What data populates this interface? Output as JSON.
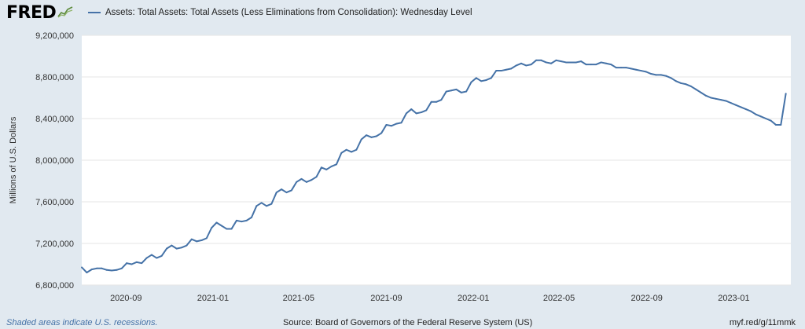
{
  "logo": {
    "text": "FRED",
    "mark_icon": "fred-graph-line-icon"
  },
  "legend": {
    "label": "Assets: Total Assets: Total Assets (Less Eliminations from Consolidation): Wednesday Level",
    "color": "#4572a7"
  },
  "footer": {
    "recessions_note": "Shaded areas indicate U.S. recessions.",
    "source": "Source: Board of Governors of the Federal Reserve System (US)",
    "short_url": "myf.red/g/11mmk"
  },
  "chart_data": {
    "type": "line",
    "title": "",
    "xlabel": "",
    "ylabel": "Millions of U.S. Dollars",
    "ylim": [
      6800000,
      9200000
    ],
    "yticks": [
      {
        "value": 6800000,
        "label": "6,800,000"
      },
      {
        "value": 7200000,
        "label": "7,200,000"
      },
      {
        "value": 7600000,
        "label": "7,600,000"
      },
      {
        "value": 8000000,
        "label": "8,000,000"
      },
      {
        "value": 8400000,
        "label": "8,400,000"
      },
      {
        "value": 8800000,
        "label": "8,800,000"
      },
      {
        "value": 9200000,
        "label": "9,200,000"
      }
    ],
    "xlim": [
      "2020-07-01",
      "2023-03-22"
    ],
    "xticks": [
      {
        "date": "2020-09-01",
        "label": "2020-09"
      },
      {
        "date": "2021-01-01",
        "label": "2021-01"
      },
      {
        "date": "2021-05-01",
        "label": "2021-05"
      },
      {
        "date": "2021-09-01",
        "label": "2021-09"
      },
      {
        "date": "2022-01-01",
        "label": "2022-01"
      },
      {
        "date": "2022-05-01",
        "label": "2022-05"
      },
      {
        "date": "2022-09-01",
        "label": "2022-09"
      },
      {
        "date": "2023-01-01",
        "label": "2023-01"
      }
    ],
    "grid": {
      "horizontal": true,
      "vertical": false
    },
    "series": [
      {
        "color": "#4572a7",
        "points": [
          [
            "2020-07-01",
            6970000
          ],
          [
            "2020-07-08",
            6920000
          ],
          [
            "2020-07-15",
            6950000
          ],
          [
            "2020-07-22",
            6960000
          ],
          [
            "2020-07-29",
            6960000
          ],
          [
            "2020-08-05",
            6945000
          ],
          [
            "2020-08-12",
            6940000
          ],
          [
            "2020-08-19",
            6945000
          ],
          [
            "2020-08-26",
            6960000
          ],
          [
            "2020-09-02",
            7010000
          ],
          [
            "2020-09-09",
            7000000
          ],
          [
            "2020-09-16",
            7020000
          ],
          [
            "2020-09-23",
            7010000
          ],
          [
            "2020-09-30",
            7060000
          ],
          [
            "2020-10-07",
            7090000
          ],
          [
            "2020-10-14",
            7060000
          ],
          [
            "2020-10-21",
            7080000
          ],
          [
            "2020-10-28",
            7150000
          ],
          [
            "2020-11-04",
            7180000
          ],
          [
            "2020-11-11",
            7150000
          ],
          [
            "2020-11-18",
            7160000
          ],
          [
            "2020-11-25",
            7180000
          ],
          [
            "2020-12-02",
            7240000
          ],
          [
            "2020-12-09",
            7220000
          ],
          [
            "2020-12-16",
            7230000
          ],
          [
            "2020-12-23",
            7250000
          ],
          [
            "2020-12-30",
            7350000
          ],
          [
            "2021-01-06",
            7400000
          ],
          [
            "2021-01-13",
            7370000
          ],
          [
            "2021-01-20",
            7340000
          ],
          [
            "2021-01-27",
            7340000
          ],
          [
            "2021-02-03",
            7420000
          ],
          [
            "2021-02-10",
            7410000
          ],
          [
            "2021-02-17",
            7420000
          ],
          [
            "2021-02-24",
            7450000
          ],
          [
            "2021-03-03",
            7560000
          ],
          [
            "2021-03-10",
            7590000
          ],
          [
            "2021-03-17",
            7560000
          ],
          [
            "2021-03-24",
            7580000
          ],
          [
            "2021-03-31",
            7690000
          ],
          [
            "2021-04-07",
            7720000
          ],
          [
            "2021-04-14",
            7690000
          ],
          [
            "2021-04-21",
            7710000
          ],
          [
            "2021-04-28",
            7790000
          ],
          [
            "2021-05-05",
            7820000
          ],
          [
            "2021-05-12",
            7790000
          ],
          [
            "2021-05-19",
            7810000
          ],
          [
            "2021-05-26",
            7840000
          ],
          [
            "2021-06-02",
            7930000
          ],
          [
            "2021-06-09",
            7910000
          ],
          [
            "2021-06-16",
            7940000
          ],
          [
            "2021-06-23",
            7960000
          ],
          [
            "2021-06-30",
            8070000
          ],
          [
            "2021-07-07",
            8100000
          ],
          [
            "2021-07-14",
            8080000
          ],
          [
            "2021-07-21",
            8100000
          ],
          [
            "2021-07-28",
            8200000
          ],
          [
            "2021-08-04",
            8240000
          ],
          [
            "2021-08-11",
            8220000
          ],
          [
            "2021-08-18",
            8230000
          ],
          [
            "2021-08-25",
            8260000
          ],
          [
            "2021-09-01",
            8340000
          ],
          [
            "2021-09-08",
            8330000
          ],
          [
            "2021-09-15",
            8350000
          ],
          [
            "2021-09-22",
            8360000
          ],
          [
            "2021-09-29",
            8450000
          ],
          [
            "2021-10-06",
            8490000
          ],
          [
            "2021-10-13",
            8450000
          ],
          [
            "2021-10-20",
            8460000
          ],
          [
            "2021-10-27",
            8480000
          ],
          [
            "2021-11-03",
            8560000
          ],
          [
            "2021-11-10",
            8560000
          ],
          [
            "2021-11-17",
            8580000
          ],
          [
            "2021-11-24",
            8660000
          ],
          [
            "2021-12-01",
            8670000
          ],
          [
            "2021-12-08",
            8680000
          ],
          [
            "2021-12-15",
            8650000
          ],
          [
            "2021-12-22",
            8660000
          ],
          [
            "2021-12-29",
            8750000
          ],
          [
            "2022-01-05",
            8790000
          ],
          [
            "2022-01-12",
            8760000
          ],
          [
            "2022-01-19",
            8770000
          ],
          [
            "2022-01-26",
            8790000
          ],
          [
            "2022-02-02",
            8860000
          ],
          [
            "2022-02-09",
            8860000
          ],
          [
            "2022-02-16",
            8870000
          ],
          [
            "2022-02-23",
            8880000
          ],
          [
            "2022-03-02",
            8910000
          ],
          [
            "2022-03-09",
            8930000
          ],
          [
            "2022-03-16",
            8910000
          ],
          [
            "2022-03-23",
            8920000
          ],
          [
            "2022-03-30",
            8960000
          ],
          [
            "2022-04-06",
            8960000
          ],
          [
            "2022-04-13",
            8940000
          ],
          [
            "2022-04-20",
            8930000
          ],
          [
            "2022-04-27",
            8960000
          ],
          [
            "2022-05-04",
            8950000
          ],
          [
            "2022-05-11",
            8940000
          ],
          [
            "2022-05-18",
            8940000
          ],
          [
            "2022-05-25",
            8940000
          ],
          [
            "2022-06-01",
            8950000
          ],
          [
            "2022-06-08",
            8920000
          ],
          [
            "2022-06-15",
            8920000
          ],
          [
            "2022-06-22",
            8920000
          ],
          [
            "2022-06-29",
            8940000
          ],
          [
            "2022-07-06",
            8930000
          ],
          [
            "2022-07-13",
            8920000
          ],
          [
            "2022-07-20",
            8890000
          ],
          [
            "2022-07-27",
            8890000
          ],
          [
            "2022-08-03",
            8890000
          ],
          [
            "2022-08-10",
            8880000
          ],
          [
            "2022-08-17",
            8870000
          ],
          [
            "2022-08-24",
            8860000
          ],
          [
            "2022-08-31",
            8850000
          ],
          [
            "2022-09-07",
            8830000
          ],
          [
            "2022-09-14",
            8820000
          ],
          [
            "2022-09-21",
            8820000
          ],
          [
            "2022-09-28",
            8810000
          ],
          [
            "2022-10-05",
            8790000
          ],
          [
            "2022-10-12",
            8760000
          ],
          [
            "2022-10-19",
            8740000
          ],
          [
            "2022-10-26",
            8730000
          ],
          [
            "2022-11-02",
            8710000
          ],
          [
            "2022-11-09",
            8680000
          ],
          [
            "2022-11-16",
            8650000
          ],
          [
            "2022-11-23",
            8620000
          ],
          [
            "2022-11-30",
            8600000
          ],
          [
            "2022-12-07",
            8590000
          ],
          [
            "2022-12-14",
            8580000
          ],
          [
            "2022-12-21",
            8570000
          ],
          [
            "2022-12-28",
            8550000
          ],
          [
            "2023-01-04",
            8530000
          ],
          [
            "2023-01-11",
            8510000
          ],
          [
            "2023-01-18",
            8490000
          ],
          [
            "2023-01-25",
            8470000
          ],
          [
            "2023-02-01",
            8440000
          ],
          [
            "2023-02-08",
            8420000
          ],
          [
            "2023-02-15",
            8400000
          ],
          [
            "2023-02-22",
            8380000
          ],
          [
            "2023-03-01",
            8340000
          ],
          [
            "2023-03-08",
            8340000
          ],
          [
            "2023-03-15",
            8640000
          ]
        ]
      }
    ]
  }
}
